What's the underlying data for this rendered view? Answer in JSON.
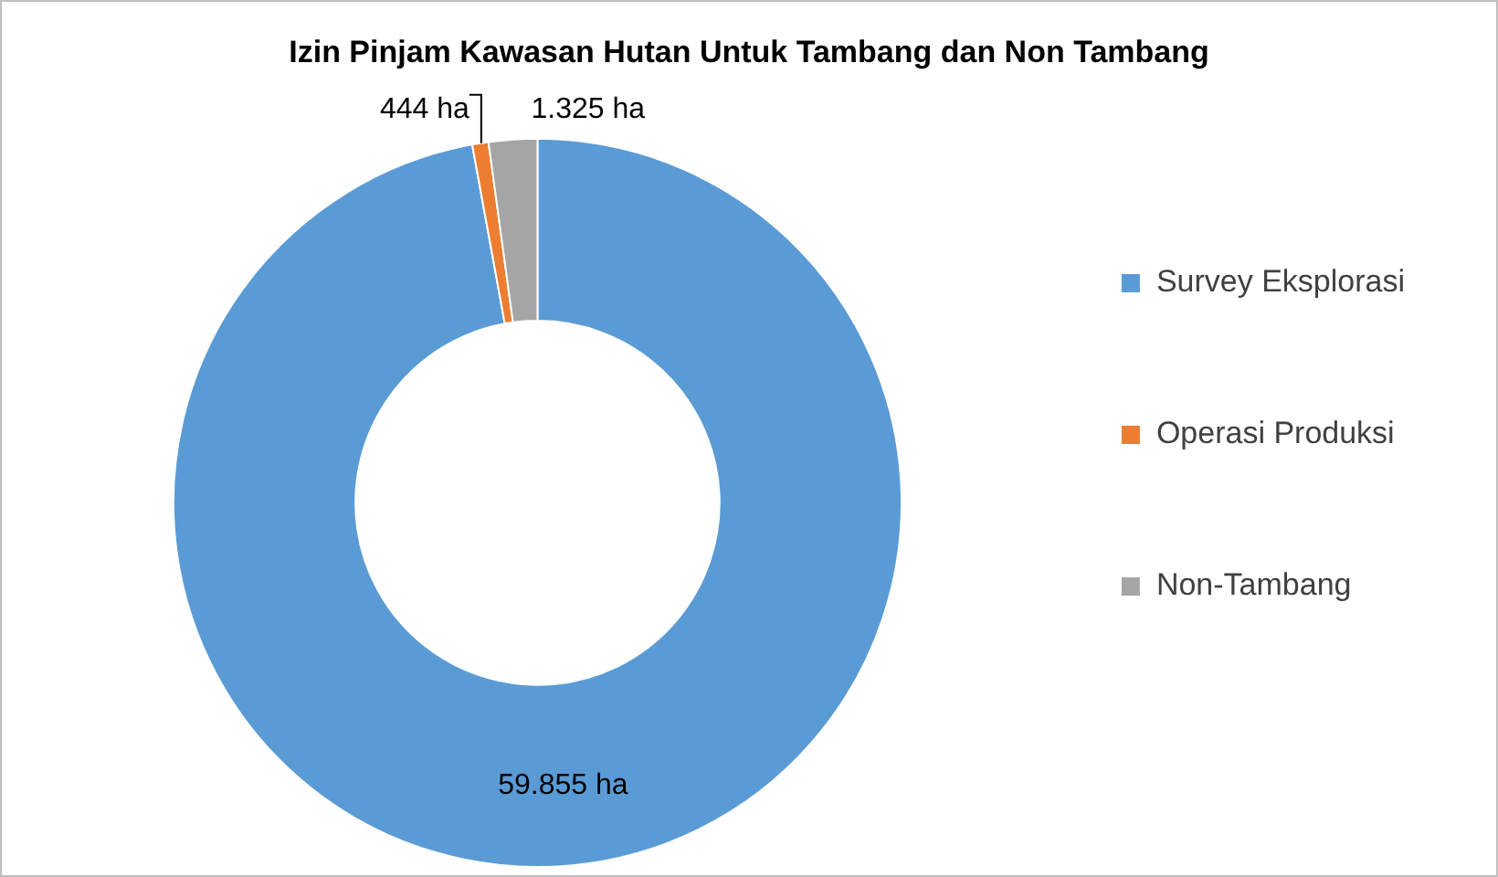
{
  "chart_data": {
    "type": "donut",
    "title": "Izin Pinjam Kawasan Hutan Untuk Tambang dan Non Tambang",
    "categories": [
      "Survey Eksplorasi",
      "Operasi Produksi",
      "Non-Tambang"
    ],
    "values": [
      59855,
      444,
      1325
    ],
    "colors": [
      "#5b9bd5",
      "#ed7d31",
      "#a5a5a5"
    ],
    "value_labels": [
      "59.855 ha",
      "444 ha",
      "1.325 ha"
    ],
    "legend": "right"
  }
}
